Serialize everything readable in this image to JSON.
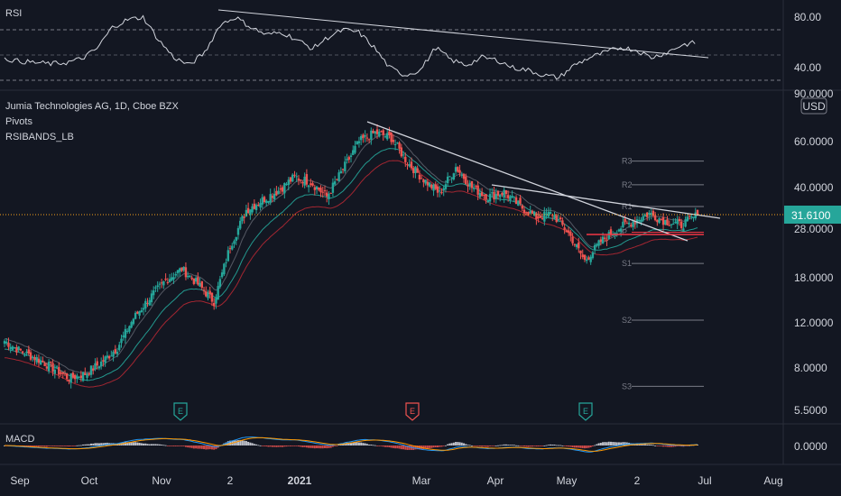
{
  "chart_data": {
    "type": "candlestick",
    "title": "Jumia Technologies AG, 1D, Cboe BZX",
    "indicators": [
      "Pivots",
      "RSIBANDS_LB"
    ],
    "currency": "USD",
    "last_price": "31.6100",
    "price_axis": {
      "scale": "log",
      "ticks": [
        "60.0000",
        "40.0000",
        "28.0000",
        "18.0000",
        "12.0000",
        "8.0000",
        "5.5000"
      ],
      "top_label": "90.0000",
      "range": [
        5.0,
        95.0
      ]
    },
    "time_axis": {
      "ticks": [
        "Sep",
        "Oct",
        "Nov",
        "2",
        "2021",
        "Mar",
        "Apr",
        "May",
        "2",
        "Jul",
        "Aug"
      ],
      "bold": [
        "2021"
      ]
    },
    "pivot_levels": [
      {
        "label": "R3",
        "value": 50.5
      },
      {
        "label": "R2",
        "value": 41.0
      },
      {
        "label": "R1",
        "value": 34.0
      },
      {
        "label": "P",
        "value": 27.2
      },
      {
        "label": "S1",
        "value": 20.5
      },
      {
        "label": "S2",
        "value": 12.3
      },
      {
        "label": "S3",
        "value": 6.8
      }
    ],
    "earnings_markers": [
      {
        "label": "E",
        "date": "Nov 2020",
        "style": "neutral"
      },
      {
        "label": "E",
        "date": "Feb 2021",
        "style": "negative"
      },
      {
        "label": "E",
        "date": "May 2021",
        "style": "neutral"
      }
    ],
    "close_series": [
      {
        "date": "2020-09-01",
        "close": 10.2
      },
      {
        "date": "2020-09-08",
        "close": 9.3
      },
      {
        "date": "2020-09-15",
        "close": 8.7
      },
      {
        "date": "2020-09-22",
        "close": 8.0
      },
      {
        "date": "2020-09-29",
        "close": 7.3
      },
      {
        "date": "2020-10-06",
        "close": 7.6
      },
      {
        "date": "2020-10-13",
        "close": 8.4
      },
      {
        "date": "2020-10-20",
        "close": 9.6
      },
      {
        "date": "2020-10-27",
        "close": 12.5
      },
      {
        "date": "2020-11-03",
        "close": 15.0
      },
      {
        "date": "2020-11-10",
        "close": 17.6
      },
      {
        "date": "2020-11-17",
        "close": 19.5
      },
      {
        "date": "2020-11-24",
        "close": 17.0
      },
      {
        "date": "2020-12-01",
        "close": 14.5
      },
      {
        "date": "2020-12-08",
        "close": 24.0
      },
      {
        "date": "2020-12-15",
        "close": 33.0
      },
      {
        "date": "2020-12-22",
        "close": 36.0
      },
      {
        "date": "2020-12-29",
        "close": 39.0
      },
      {
        "date": "2021-01-05",
        "close": 44.0
      },
      {
        "date": "2021-01-12",
        "close": 42.0
      },
      {
        "date": "2021-01-19",
        "close": 37.0
      },
      {
        "date": "2021-01-26",
        "close": 47.0
      },
      {
        "date": "2021-02-02",
        "close": 60.0
      },
      {
        "date": "2021-02-09",
        "close": 65.0
      },
      {
        "date": "2021-02-16",
        "close": 62.0
      },
      {
        "date": "2021-02-23",
        "close": 50.0
      },
      {
        "date": "2021-03-02",
        "close": 43.0
      },
      {
        "date": "2021-03-09",
        "close": 38.0
      },
      {
        "date": "2021-03-16",
        "close": 48.0
      },
      {
        "date": "2021-03-23",
        "close": 40.0
      },
      {
        "date": "2021-03-30",
        "close": 37.0
      },
      {
        "date": "2021-04-06",
        "close": 38.5
      },
      {
        "date": "2021-04-13",
        "close": 34.0
      },
      {
        "date": "2021-04-20",
        "close": 31.0
      },
      {
        "date": "2021-04-27",
        "close": 32.0
      },
      {
        "date": "2021-05-04",
        "close": 27.0
      },
      {
        "date": "2021-05-11",
        "close": 21.0
      },
      {
        "date": "2021-05-18",
        "close": 25.0
      },
      {
        "date": "2021-05-25",
        "close": 28.0
      },
      {
        "date": "2021-06-01",
        "close": 30.0
      },
      {
        "date": "2021-06-08",
        "close": 32.0
      },
      {
        "date": "2021-06-15",
        "close": 30.0
      },
      {
        "date": "2021-06-22",
        "close": 29.0
      },
      {
        "date": "2021-06-29",
        "close": 31.61
      }
    ],
    "rsi": {
      "label": "RSI",
      "ticks": [
        "80.00",
        "40.00"
      ],
      "bands": [
        70,
        50,
        30
      ],
      "values": [
        47,
        45,
        44,
        43,
        44,
        47,
        55,
        72,
        78,
        80,
        62,
        48,
        42,
        52,
        74,
        80,
        72,
        66,
        68,
        62,
        55,
        64,
        70,
        68,
        56,
        40,
        34,
        38,
        56,
        46,
        42,
        48,
        46,
        40,
        38,
        34,
        32,
        42,
        48,
        52,
        56,
        54,
        48,
        52,
        58,
        60
      ]
    },
    "macd": {
      "label": "MACD",
      "tick": "0.0000"
    }
  }
}
